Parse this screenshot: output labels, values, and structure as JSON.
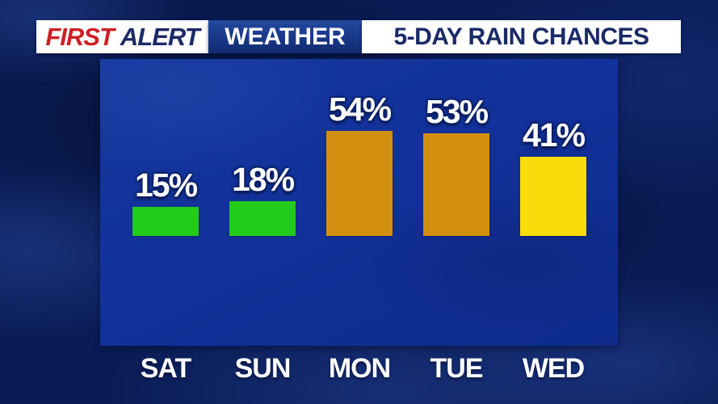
{
  "header": {
    "brand_first": "FIRST",
    "brand_alert": "ALERT",
    "section_label": "WEATHER",
    "title": "5-DAY RAIN CHANCES"
  },
  "chart_data": {
    "type": "bar",
    "title": "5-DAY RAIN CHANCES",
    "categories": [
      "SAT",
      "SUN",
      "MON",
      "TUE",
      "WED"
    ],
    "values": [
      15,
      18,
      54,
      53,
      41
    ],
    "value_labels": [
      "15%",
      "18%",
      "54%",
      "53%",
      "41%"
    ],
    "unit": "%",
    "ylim": [
      0,
      100
    ],
    "grid": false,
    "legend": false,
    "bar_colors": [
      "#23cb1b",
      "#23cb1b",
      "#d28f10",
      "#d28f10",
      "#f8dc0c"
    ]
  },
  "colors": {
    "background_navy": "#0a1c55",
    "panel_blue": "#11319a",
    "brand_red": "#ce2027",
    "brand_navy": "#1c2a66",
    "title_navy": "#1a2a66",
    "bar_green": "#23cb1b",
    "bar_orange": "#d28f10",
    "bar_yellow": "#f8dc0c",
    "label_white": "#ffffff"
  }
}
